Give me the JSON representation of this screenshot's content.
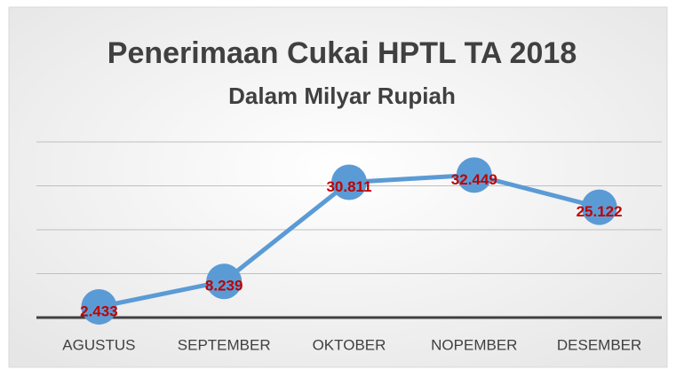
{
  "chart_data": {
    "type": "line",
    "title": "Penerimaan Cukai HPTL TA 2018",
    "subtitle": "Dalam Milyar Rupiah",
    "categories": [
      "AGUSTUS",
      "SEPTEMBER",
      "OKTOBER",
      "NOPEMBER",
      "DESEMBER"
    ],
    "values": [
      2.433,
      8.239,
      30.811,
      32.449,
      25.122
    ],
    "color": "#5b9bd5",
    "label_color": "#c00000",
    "ylim": [
      0,
      40
    ],
    "yticks": [
      0,
      10,
      20,
      30,
      40
    ],
    "grid": true
  }
}
